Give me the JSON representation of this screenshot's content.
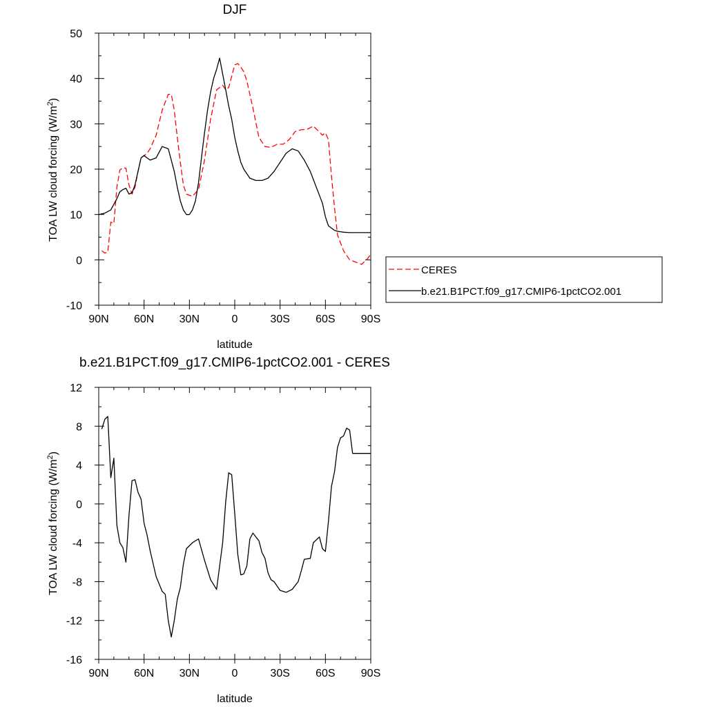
{
  "chart_data": [
    {
      "type": "line",
      "title": "DJF",
      "xlabel": "latitude",
      "ylabel": "TOA LW cloud forcing (W/m",
      "ylabel_sup": "2",
      "ylabel_close": ")",
      "xlim": [
        90,
        -90
      ],
      "ylim": [
        -10,
        50
      ],
      "xticks": [
        {
          "value": 90,
          "label": "90N"
        },
        {
          "value": 60,
          "label": "60N"
        },
        {
          "value": 30,
          "label": "30N"
        },
        {
          "value": 0,
          "label": "0"
        },
        {
          "value": -30,
          "label": "30S"
        },
        {
          "value": -60,
          "label": "60S"
        },
        {
          "value": -90,
          "label": "90S"
        }
      ],
      "yticks": [
        {
          "value": 50,
          "label": "50"
        },
        {
          "value": 40,
          "label": "40"
        },
        {
          "value": 30,
          "label": "30"
        },
        {
          "value": 20,
          "label": "20"
        },
        {
          "value": 10,
          "label": "10"
        },
        {
          "value": 0,
          "label": "0"
        },
        {
          "value": -10,
          "label": "-10"
        }
      ],
      "grid": false,
      "legend": "right",
      "series": [
        {
          "name": "CERES",
          "color": "#ff0000",
          "dash": "dashed",
          "x": [
            88,
            86,
            84,
            82,
            80,
            78,
            76,
            74,
            72,
            70,
            68,
            66,
            64,
            62,
            60,
            58,
            56,
            52,
            48,
            44,
            42,
            40,
            38,
            36,
            34,
            32,
            28,
            24,
            20,
            16,
            12,
            8,
            6,
            4,
            2,
            0,
            -2,
            -4,
            -6,
            -8,
            -12,
            -16,
            -20,
            -24,
            -28,
            -32,
            -36,
            -40,
            -44,
            -48,
            -52,
            -56,
            -58,
            -60,
            -62,
            -64,
            -66,
            -68,
            -72,
            -76,
            -80,
            -84,
            -86,
            -88,
            -90
          ],
          "y": [
            2,
            1.5,
            1.7,
            8.3,
            8,
            16,
            19.8,
            20.3,
            20.2,
            16.5,
            14.5,
            16,
            19.5,
            22.5,
            23,
            23.5,
            24.5,
            27.5,
            33,
            36.5,
            36.5,
            33,
            27,
            21.5,
            16.5,
            14.5,
            14,
            15.5,
            22,
            31,
            37.5,
            38.5,
            37.5,
            38,
            40.5,
            43,
            43.3,
            42.5,
            41.5,
            39.5,
            33.5,
            27,
            25,
            24.8,
            25.5,
            25.5,
            26.5,
            28.3,
            28.7,
            28.8,
            29.5,
            28.2,
            27.5,
            28,
            26.5,
            18.5,
            11.5,
            5.5,
            2,
            0,
            -0.5,
            -1,
            -0.3,
            0.3,
            1.3
          ]
        },
        {
          "name": "b.e21.B1PCT.f09_g17.CMIP6-1pctCO2.001",
          "color": "#000000",
          "dash": "solid",
          "x": [
            90,
            86,
            82,
            78,
            76,
            74,
            72,
            70,
            68,
            66,
            64,
            62,
            60,
            58,
            56,
            52,
            48,
            44,
            42,
            40,
            38,
            36,
            34,
            32,
            30,
            28,
            26,
            24,
            22,
            20,
            18,
            16,
            14,
            12,
            10,
            8,
            6,
            4,
            2,
            0,
            -2,
            -4,
            -6,
            -8,
            -10,
            -14,
            -18,
            -22,
            -26,
            -30,
            -34,
            -38,
            -42,
            -46,
            -50,
            -54,
            -58,
            -60,
            -62,
            -64,
            -66,
            -68,
            -70,
            -72,
            -76,
            -80,
            -84,
            -88,
            -90
          ],
          "y": [
            10,
            10.3,
            11,
            13.5,
            15,
            15.5,
            15.8,
            14.5,
            14.8,
            16.5,
            19.5,
            22.5,
            23,
            22.5,
            22,
            22.5,
            25,
            24.5,
            22,
            19.5,
            16,
            13,
            11,
            10,
            10,
            11,
            13,
            17,
            22.5,
            28,
            33,
            37,
            40,
            42,
            44.5,
            41,
            37.5,
            34,
            31,
            27,
            24,
            21.5,
            20,
            19,
            18,
            17.5,
            17.5,
            18,
            19.5,
            21.5,
            23.5,
            24.5,
            24,
            22,
            19.5,
            16,
            12.5,
            9.5,
            7.5,
            7,
            6.5,
            6.3,
            6.2,
            6.1,
            6.0,
            6.0,
            6.0,
            6.0,
            6.0
          ]
        }
      ]
    },
    {
      "type": "line",
      "title": "b.e21.B1PCT.f09_g17.CMIP6-1pctCO2.001 - CERES",
      "xlabel": "latitude",
      "ylabel": "TOA LW cloud forcing (W/m",
      "ylabel_sup": "2",
      "ylabel_close": ")",
      "xlim": [
        90,
        -90
      ],
      "ylim": [
        -16,
        12
      ],
      "xticks": [
        {
          "value": 90,
          "label": "90N"
        },
        {
          "value": 60,
          "label": "60N"
        },
        {
          "value": 30,
          "label": "30N"
        },
        {
          "value": 0,
          "label": "0"
        },
        {
          "value": -30,
          "label": "30S"
        },
        {
          "value": -60,
          "label": "60S"
        },
        {
          "value": -90,
          "label": "90S"
        }
      ],
      "yticks": [
        {
          "value": 12,
          "label": "12"
        },
        {
          "value": 8,
          "label": "8"
        },
        {
          "value": 4,
          "label": "4"
        },
        {
          "value": 0,
          "label": "0"
        },
        {
          "value": -4,
          "label": "-4"
        },
        {
          "value": -8,
          "label": "-8"
        },
        {
          "value": -12,
          "label": "-12"
        },
        {
          "value": -16,
          "label": "-16"
        }
      ],
      "grid": false,
      "series": [
        {
          "color": "#000000",
          "dash": "solid",
          "x": [
            88,
            86,
            84,
            82,
            80,
            78,
            76,
            74,
            72,
            70,
            68,
            66,
            64,
            62,
            60,
            58,
            56,
            52,
            48,
            46,
            44,
            42,
            40,
            38,
            36,
            34,
            32,
            28,
            24,
            20,
            16,
            12,
            8,
            6,
            4,
            2,
            0,
            -2,
            -4,
            -6,
            -8,
            -10,
            -12,
            -16,
            -18,
            -20,
            -22,
            -24,
            -26,
            -30,
            -34,
            -38,
            -42,
            -44,
            -46,
            -50,
            -52,
            -56,
            -58,
            -60,
            -62,
            -64,
            -66,
            -68,
            -70,
            -72,
            -74,
            -76,
            -78,
            -80,
            -82,
            -84,
            -86,
            -88,
            -90
          ],
          "y": [
            7.7,
            8.7,
            9,
            2.7,
            4.7,
            -2.2,
            -4,
            -4.5,
            -6,
            -1.2,
            2.4,
            2.5,
            1.2,
            0.5,
            -2,
            -3.2,
            -4.8,
            -7.5,
            -9,
            -9.3,
            -12,
            -13.7,
            -12,
            -9.8,
            -8.6,
            -6.2,
            -4.6,
            -4,
            -3.6,
            -5.8,
            -7.8,
            -8.8,
            -4,
            0.2,
            3.2,
            3,
            -1,
            -5.2,
            -7.3,
            -7.2,
            -6.4,
            -3.6,
            -3,
            -3.8,
            -5,
            -5.6,
            -7.1,
            -7.8,
            -8,
            -8.9,
            -9.1,
            -8.8,
            -8,
            -6.9,
            -5.7,
            -5.6,
            -4,
            -3.4,
            -4.6,
            -4.9,
            -1.8,
            1.8,
            3.3,
            5.8,
            6.8,
            7,
            7.8,
            7.6,
            5.2,
            5.2,
            5.2,
            5.2,
            5.2,
            5.2,
            5.2
          ]
        }
      ]
    }
  ]
}
